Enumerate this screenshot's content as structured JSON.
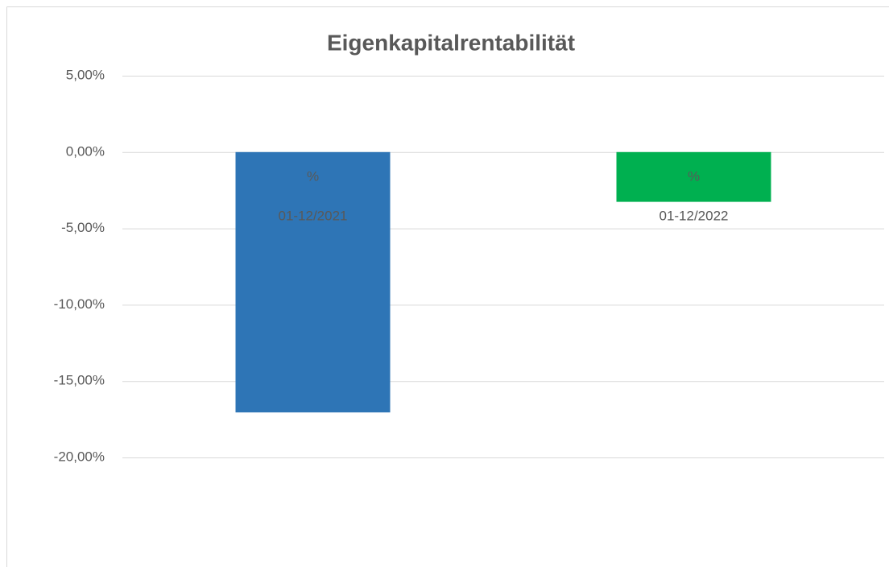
{
  "chart_data": {
    "type": "bar",
    "title": "Eigenkapitalrentabilität",
    "categories": [
      "01-12/2021",
      "01-12/2022"
    ],
    "values": [
      -17.05,
      -3.26
    ],
    "value_labels": [
      "%",
      "%"
    ],
    "colors": [
      "#2e75b6",
      "#00b050"
    ],
    "ylim": [
      -20,
      5
    ],
    "yticks": [
      {
        "value": 5,
        "label": "5,00%"
      },
      {
        "value": 0,
        "label": "0,00%"
      },
      {
        "value": -5,
        "label": "-5,00%"
      },
      {
        "value": -10,
        "label": "-10,00%"
      },
      {
        "value": -15,
        "label": "-15,00%"
      },
      {
        "value": -20,
        "label": "-20,00%"
      }
    ],
    "grid": true
  }
}
